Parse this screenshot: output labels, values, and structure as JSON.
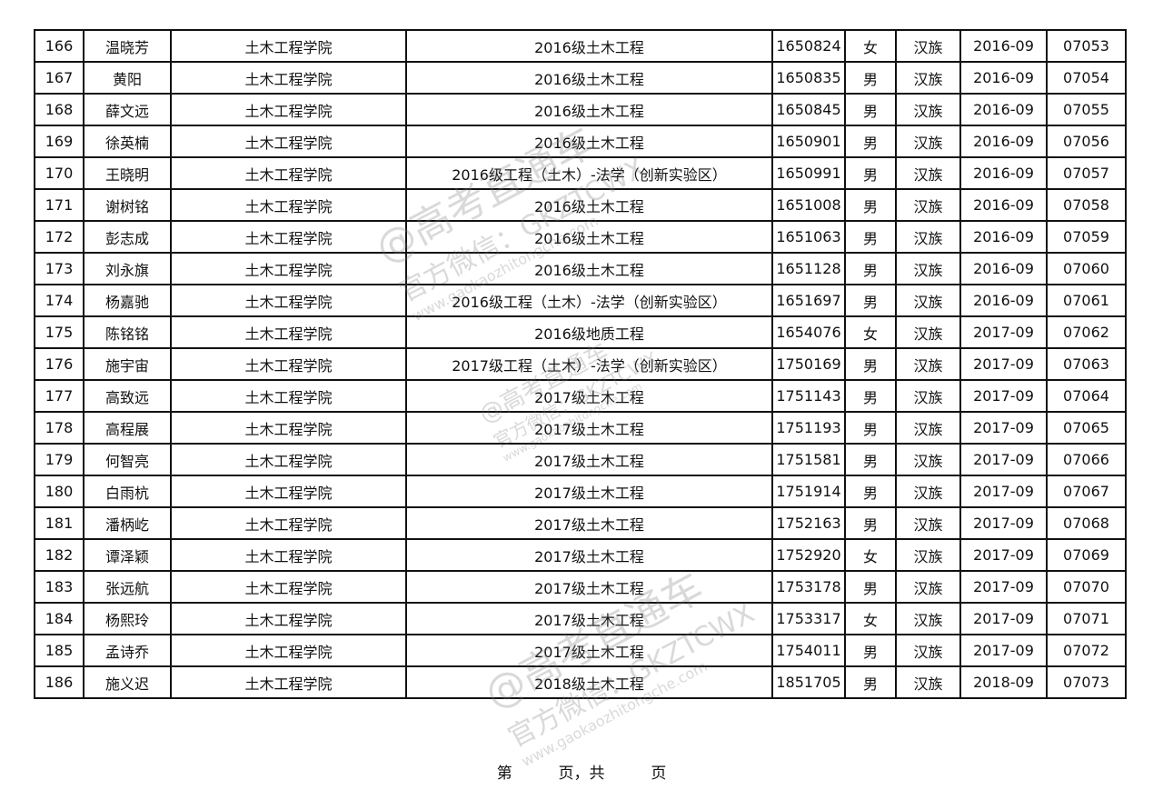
{
  "table": {
    "rows": [
      [
        "166",
        "温晓芳",
        "土木工程学院",
        "2016级土木工程",
        "1650824",
        "女",
        "汉族",
        "2016-09",
        "07053"
      ],
      [
        "167",
        "黄阳",
        "土木工程学院",
        "2016级土木工程",
        "1650835",
        "男",
        "汉族",
        "2016-09",
        "07054"
      ],
      [
        "168",
        "薛文远",
        "土木工程学院",
        "2016级土木工程",
        "1650845",
        "男",
        "汉族",
        "2016-09",
        "07055"
      ],
      [
        "169",
        "徐英楠",
        "土木工程学院",
        "2016级土木工程",
        "1650901",
        "男",
        "汉族",
        "2016-09",
        "07056"
      ],
      [
        "170",
        "王晓明",
        "土木工程学院",
        "2016级工程（土木）-法学（创新实验区）",
        "1650991",
        "男",
        "汉族",
        "2016-09",
        "07057"
      ],
      [
        "171",
        "谢树铭",
        "土木工程学院",
        "2016级土木工程",
        "1651008",
        "男",
        "汉族",
        "2016-09",
        "07058"
      ],
      [
        "172",
        "彭志成",
        "土木工程学院",
        "2016级土木工程",
        "1651063",
        "男",
        "汉族",
        "2016-09",
        "07059"
      ],
      [
        "173",
        "刘永旗",
        "土木工程学院",
        "2016级土木工程",
        "1651128",
        "男",
        "汉族",
        "2016-09",
        "07060"
      ],
      [
        "174",
        "杨嘉驰",
        "土木工程学院",
        "2016级工程（土木）-法学（创新实验区）",
        "1651697",
        "男",
        "汉族",
        "2016-09",
        "07061"
      ],
      [
        "175",
        "陈铭铭",
        "土木工程学院",
        "2016级地质工程",
        "1654076",
        "女",
        "汉族",
        "2017-09",
        "07062"
      ],
      [
        "176",
        "施宇宙",
        "土木工程学院",
        "2017级工程（土木）-法学（创新实验区）",
        "1750169",
        "男",
        "汉族",
        "2017-09",
        "07063"
      ],
      [
        "177",
        "高致远",
        "土木工程学院",
        "2017级土木工程",
        "1751143",
        "男",
        "汉族",
        "2017-09",
        "07064"
      ],
      [
        "178",
        "高程展",
        "土木工程学院",
        "2017级土木工程",
        "1751193",
        "男",
        "汉族",
        "2017-09",
        "07065"
      ],
      [
        "179",
        "何智亮",
        "土木工程学院",
        "2017级土木工程",
        "1751581",
        "男",
        "汉族",
        "2017-09",
        "07066"
      ],
      [
        "180",
        "白雨杭",
        "土木工程学院",
        "2017级土木工程",
        "1751914",
        "男",
        "汉族",
        "2017-09",
        "07067"
      ],
      [
        "181",
        "潘柄屹",
        "土木工程学院",
        "2017级土木工程",
        "1752163",
        "男",
        "汉族",
        "2017-09",
        "07068"
      ],
      [
        "182",
        "谭泽颖",
        "土木工程学院",
        "2017级土木工程",
        "1752920",
        "女",
        "汉族",
        "2017-09",
        "07069"
      ],
      [
        "183",
        "张远航",
        "土木工程学院",
        "2017级土木工程",
        "1753178",
        "男",
        "汉族",
        "2017-09",
        "07070"
      ],
      [
        "184",
        "杨熙玲",
        "土木工程学院",
        "2017级土木工程",
        "1753317",
        "女",
        "汉族",
        "2017-09",
        "07071"
      ],
      [
        "185",
        "孟诗乔",
        "土木工程学院",
        "2017级土木工程",
        "1754011",
        "男",
        "汉族",
        "2017-09",
        "07072"
      ],
      [
        "186",
        "施义迟",
        "土木工程学院",
        "2018级土木工程",
        "1851705",
        "男",
        "汉族",
        "2018-09",
        "07073"
      ]
    ]
  },
  "footer": {
    "page_prefix": "第",
    "page_mid": "页，共",
    "page_suffix": "页"
  },
  "watermark": {
    "line1": "@高考直通车",
    "line2": "官方微信：GKZTCWX",
    "line3": "www.gaokaozhitongche.com"
  }
}
